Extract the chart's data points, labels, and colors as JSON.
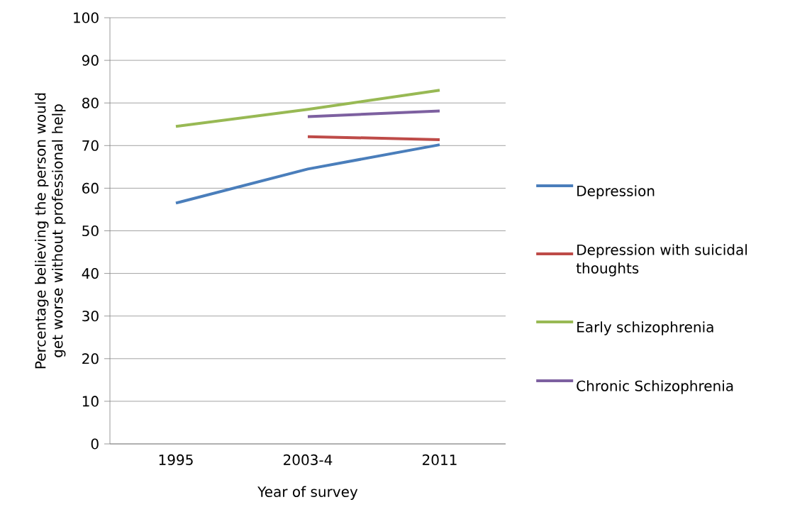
{
  "chart_data": {
    "type": "line",
    "xlabel": "Year of survey",
    "ylabel": "Percentage believing the person would get worse without professional help",
    "categories": [
      "1995",
      "2003-4",
      "2011"
    ],
    "series": [
      {
        "name": "Depression",
        "color": "#4a7ebb",
        "values": [
          56.5,
          64.5,
          70.2
        ]
      },
      {
        "name": "Depression with suicidal thoughts",
        "color": "#be4b48",
        "values": [
          null,
          72.1,
          71.4
        ]
      },
      {
        "name": "Early schizophrenia",
        "color": "#98b954",
        "values": [
          74.5,
          78.5,
          83.0
        ]
      },
      {
        "name": "Chronic Schizophrenia",
        "color": "#7d60a0",
        "values": [
          null,
          76.8,
          78.1
        ]
      }
    ],
    "ylim": [
      0,
      100
    ],
    "yticks": [
      0,
      10,
      20,
      30,
      40,
      50,
      60,
      70,
      80,
      90,
      100
    ],
    "grid": "y",
    "legend": "right"
  }
}
